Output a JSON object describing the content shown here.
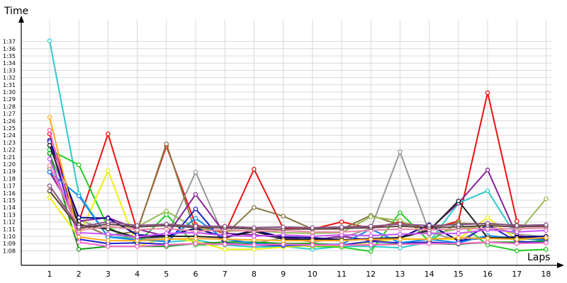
{
  "chart_data": {
    "type": "line",
    "xlabel": "Laps",
    "ylabel": "Time",
    "x": [
      1,
      2,
      3,
      4,
      5,
      6,
      7,
      8,
      9,
      10,
      11,
      12,
      13,
      14,
      15,
      16,
      17,
      18
    ],
    "ylim": [
      67,
      98
    ],
    "y_ticks": [
      "1:08",
      "1:09",
      "1:10",
      "1:11",
      "1:12",
      "1:13",
      "1:14",
      "1:15",
      "1:16",
      "1:17",
      "1:18",
      "1:19",
      "1:20",
      "1:21",
      "1:22",
      "1:23",
      "1:24",
      "1:25",
      "1:26",
      "1:27",
      "1:28",
      "1:29",
      "1:30",
      "1:31",
      "1:32",
      "1:33",
      "1:34",
      "1:35",
      "1:36",
      "1:37"
    ],
    "grid": {
      "horizontal": true,
      "vertical": true
    },
    "series": [
      {
        "color": "#ee1111",
        "values": [
          84.2,
          72.0,
          84.2,
          70.8,
          82.5,
          71.6,
          70.4,
          79.3,
          71.1,
          71.0,
          72.0,
          71.1,
          72.0,
          71.0,
          72.1,
          89.9,
          72.1,
          null
        ]
      },
      {
        "color": "#2fc9c9",
        "values": [
          97.1,
          75.9,
          69.9,
          69.8,
          69.2,
          69.5,
          68.8,
          68.5,
          68.6,
          68.2,
          68.6,
          68.6,
          68.4,
          69.2,
          74.6,
          76.3,
          69.9,
          69.3
        ]
      },
      {
        "color": "#999999",
        "values": [
          81.4,
          72.2,
          71.0,
          69.5,
          69.9,
          78.9,
          69.7,
          69.0,
          69.8,
          69.2,
          69.8,
          71.1,
          81.7,
          70.6,
          69.4,
          71.3,
          70.3,
          69.9
        ]
      },
      {
        "color": "#22cc22",
        "values": [
          82.0,
          79.9,
          71.3,
          69.0,
          73.0,
          68.8,
          68.9,
          69.0,
          68.8,
          68.6,
          68.5,
          67.9,
          73.3,
          69.3,
          71.9,
          68.8,
          68.0,
          68.2
        ]
      },
      {
        "color": "#119911",
        "values": [
          81.5,
          68.2,
          68.6,
          68.6,
          68.6,
          69.0,
          69.2,
          69.2,
          69.0,
          69.0,
          68.8,
          68.8,
          69.0,
          69.0,
          68.9,
          69.2,
          69.2,
          69.3
        ]
      },
      {
        "color": "#eeee11",
        "values": [
          75.4,
          69.9,
          79.1,
          68.6,
          69.8,
          69.3,
          68.2,
          68.2,
          68.5,
          68.7,
          68.7,
          69.2,
          69.7,
          69.6,
          69.6,
          72.6,
          69.5,
          69.8
        ]
      },
      {
        "color": "#887744",
        "values": [
          79.4,
          71.8,
          70.1,
          70.7,
          82.8,
          70.5,
          70.2,
          74.0,
          72.8,
          71.0,
          71.0,
          72.9,
          71.6,
          71.2,
          71.8,
          71.7,
          71.6,
          71.4
        ]
      },
      {
        "color": "#99bb55",
        "values": [
          76.2,
          71.6,
          71.2,
          71.3,
          73.5,
          71.1,
          70.7,
          70.8,
          70.5,
          70.4,
          70.5,
          72.7,
          72.2,
          70.3,
          71.0,
          71.5,
          70.3,
          75.2
        ]
      },
      {
        "color": "#882299",
        "values": [
          78.9,
          72.1,
          72.6,
          71.0,
          70.0,
          75.8,
          70.4,
          70.2,
          69.8,
          69.5,
          70.0,
          69.4,
          69.8,
          70.9,
          74.6,
          79.2,
          70.1,
          69.6
        ]
      },
      {
        "color": "#000088",
        "values": [
          83.3,
          72.6,
          72.5,
          70.2,
          70.0,
          71.1,
          69.9,
          70.8,
          69.9,
          69.8,
          69.5,
          69.7,
          69.8,
          71.6,
          69.4,
          69.8,
          69.9,
          70.0
        ]
      },
      {
        "color": "#2222cc",
        "values": [
          83.1,
          69.6,
          69.0,
          69.1,
          68.9,
          73.8,
          69.0,
          68.8,
          68.7,
          68.8,
          68.8,
          69.3,
          69.1,
          69.2,
          69.0,
          71.6,
          69.3,
          69.1
        ]
      },
      {
        "color": "#1188ee",
        "values": [
          78.9,
          75.6,
          69.9,
          69.5,
          69.3,
          72.5,
          69.6,
          69.0,
          68.8,
          68.8,
          68.9,
          71.0,
          69.1,
          69.6,
          69.1,
          70.1,
          69.7,
          69.5
        ]
      },
      {
        "color": "#222222",
        "values": [
          82.6,
          71.6,
          71.0,
          69.8,
          70.0,
          70.0,
          69.8,
          70.7,
          69.6,
          69.6,
          69.5,
          69.6,
          69.8,
          70.8,
          74.9,
          69.8,
          69.8,
          69.7
        ]
      },
      {
        "color": "#ff66cc",
        "values": [
          84.7,
          69.2,
          68.6,
          68.6,
          68.8,
          69.0,
          68.9,
          68.8,
          68.9,
          68.8,
          68.8,
          68.8,
          68.9,
          69.0,
          69.0,
          69.2,
          69.0,
          69.1
        ]
      },
      {
        "color": "#ffaa22",
        "values": [
          86.5,
          69.9,
          69.4,
          69.4,
          69.6,
          69.7,
          69.6,
          69.5,
          69.4,
          69.4,
          69.4,
          69.6,
          69.6,
          69.6,
          69.8,
          69.7,
          69.6,
          69.8
        ]
      },
      {
        "color": "#cc55ff",
        "values": [
          80.7,
          70.5,
          70.3,
          69.9,
          70.4,
          70.5,
          70.1,
          70.0,
          70.2,
          70.0,
          70.2,
          70.1,
          70.3,
          70.4,
          70.4,
          70.9,
          70.6,
          70.8
        ]
      },
      {
        "color": "#ee88aa",
        "values": [
          79.8,
          70.8,
          71.4,
          70.9,
          71.1,
          70.7,
          70.9,
          70.7,
          70.8,
          70.6,
          70.6,
          70.8,
          71.0,
          70.9,
          71.0,
          71.1,
          71.0,
          71.2
        ]
      },
      {
        "color": "#664444",
        "values": [
          76.3,
          71.1,
          71.7,
          71.3,
          71.5,
          71.2,
          71.2,
          71.0,
          71.0,
          71.0,
          71.1,
          71.2,
          71.4,
          71.2,
          71.3,
          71.5,
          71.3,
          71.4
        ]
      },
      {
        "color": "#885588",
        "values": [
          77.0,
          71.3,
          72.0,
          71.5,
          71.7,
          71.4,
          71.4,
          71.2,
          71.3,
          71.2,
          71.3,
          71.4,
          71.7,
          71.5,
          71.6,
          71.8,
          71.5,
          71.6
        ]
      }
    ]
  }
}
